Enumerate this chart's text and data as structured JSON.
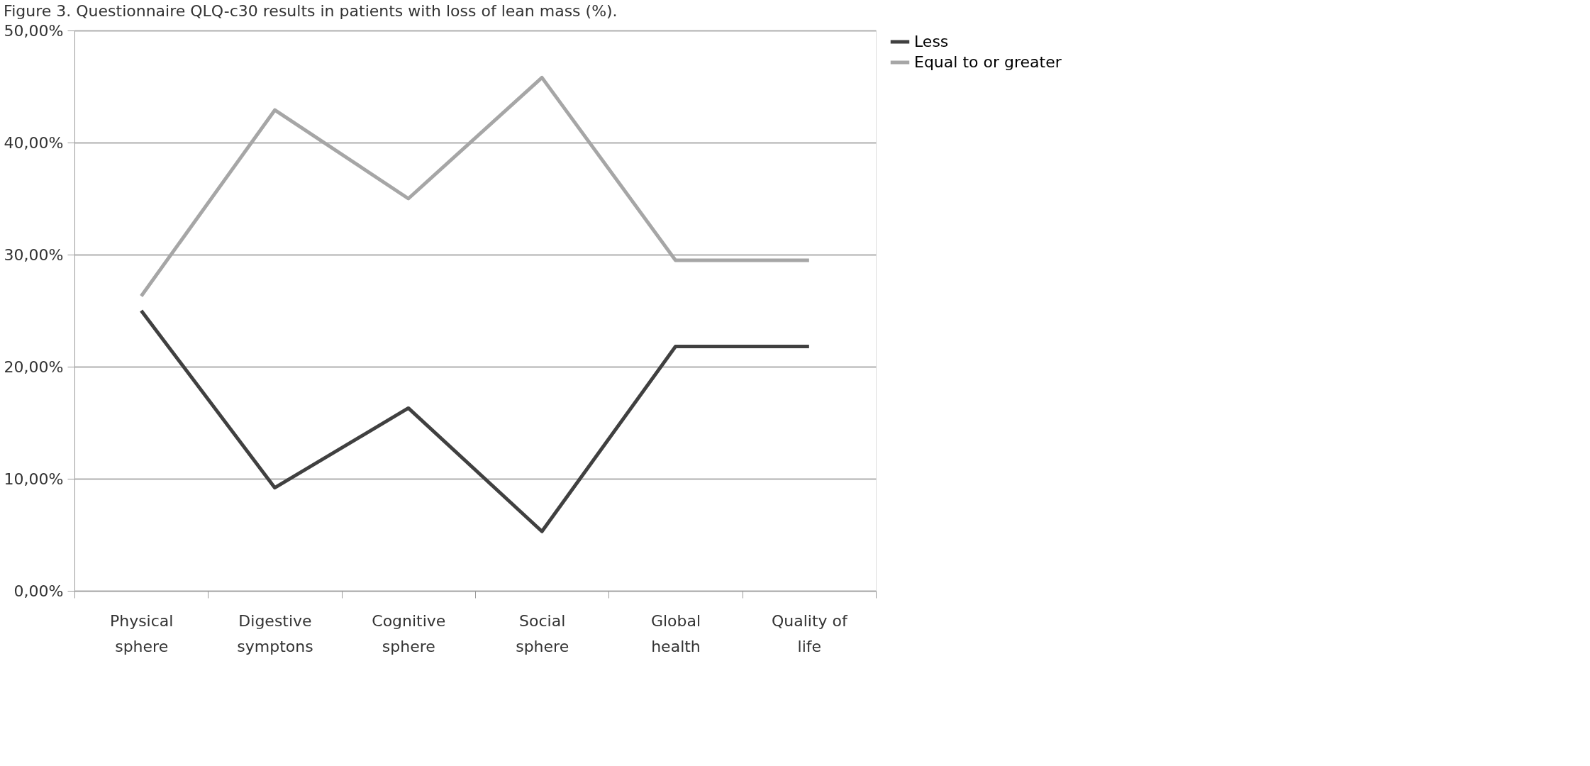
{
  "chart_data": {
    "type": "line",
    "title": "Figure 3. Questionnaire QLQ-c30 results in patients with loss of lean mass (%).",
    "categories": [
      "Physical sphere",
      "Digestive symptons",
      "Cognitive sphere",
      "Social sphere",
      "Global health",
      "Quality of life"
    ],
    "series": [
      {
        "name": "Less",
        "color": "#404040",
        "values": [
          25.0,
          9.2,
          16.3,
          5.3,
          21.8,
          21.8
        ]
      },
      {
        "name": "Equal to or greater",
        "color": "#a6a6a6",
        "values": [
          26.3,
          42.9,
          35.0,
          45.8,
          29.5,
          29.5
        ]
      }
    ],
    "ylim": [
      0,
      50
    ],
    "yticks": [
      {
        "value": 0,
        "label": "0,00%"
      },
      {
        "value": 10,
        "label": "10,00%"
      },
      {
        "value": 20,
        "label": "20,00%"
      },
      {
        "value": 30,
        "label": "30,00%"
      },
      {
        "value": 40,
        "label": "40,00%"
      },
      {
        "value": 50,
        "label": "50,00%"
      }
    ],
    "grid": "y",
    "legend": "right",
    "marker": "none",
    "line_style": "solid"
  }
}
